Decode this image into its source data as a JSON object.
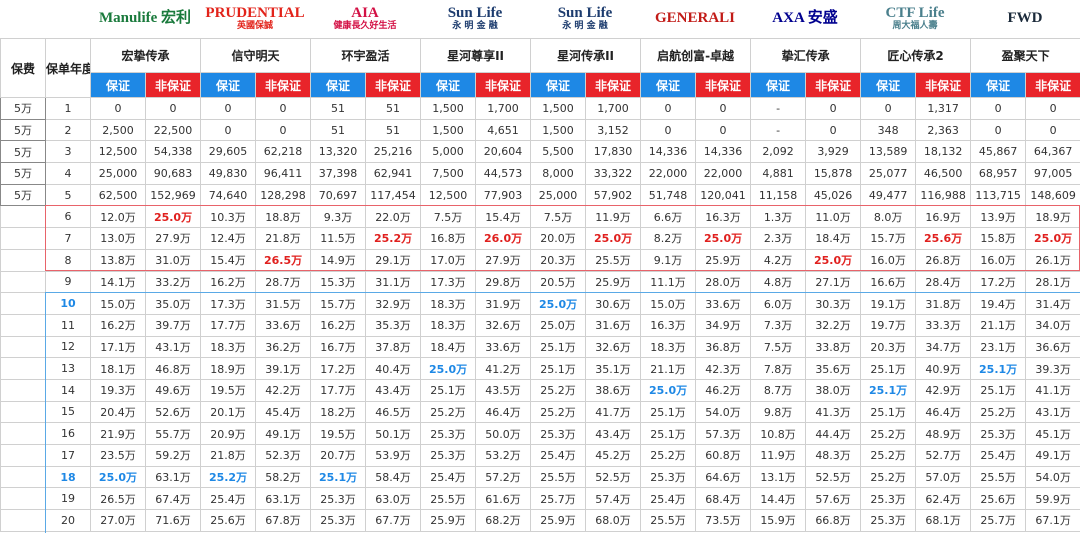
{
  "logos": [
    {
      "lines": [
        "Manulife 宏利"
      ],
      "color": "#1a7a3c"
    },
    {
      "lines": [
        "PRUDENTIAL",
        "英國保誠"
      ],
      "color": "#e2231a"
    },
    {
      "lines": [
        "AIA",
        "健康長久好生活"
      ],
      "color": "#d31145"
    },
    {
      "lines": [
        "Sun Life",
        "永 明 金 融"
      ],
      "color": "#1d3c6e"
    },
    {
      "lines": [
        "Sun Life",
        "永 明 金 融"
      ],
      "color": "#1d3c6e"
    },
    {
      "lines": [
        "GENERALI"
      ],
      "color": "#c21b17"
    },
    {
      "lines": [
        "AXA 安盛"
      ],
      "color": "#00008f"
    },
    {
      "lines": [
        "CTF Life",
        "周大福人壽"
      ],
      "color": "#4a7f8c"
    },
    {
      "lines": [
        "FWD"
      ],
      "color": "#1b2a3a"
    }
  ],
  "table": {
    "headers": [
      "保费",
      "保单年度"
    ],
    "products": [
      "宏挚传承",
      "信守明天",
      "环宇盈活",
      "星河尊享II",
      "星河传承II",
      "启航创富-卓越",
      "挚汇传承",
      "匠心传承2",
      "盈聚天下"
    ],
    "sub_headers": [
      "保证",
      "非保证"
    ],
    "rows": [
      {
        "premium": "5万",
        "year": "1",
        "values": [
          "0",
          "0",
          "0",
          "0",
          "51",
          "51",
          "1,500",
          "1,700",
          "1,500",
          "1,700",
          "0",
          "0",
          "-",
          "0",
          "0",
          "1,317",
          "0",
          "0"
        ]
      },
      {
        "premium": "5万",
        "year": "2",
        "values": [
          "2,500",
          "22,500",
          "0",
          "0",
          "51",
          "51",
          "1,500",
          "4,651",
          "1,500",
          "3,152",
          "0",
          "0",
          "-",
          "0",
          "348",
          "2,363",
          "0",
          "0"
        ]
      },
      {
        "premium": "5万",
        "year": "3",
        "values": [
          "12,500",
          "54,338",
          "29,605",
          "62,218",
          "13,320",
          "25,216",
          "5,000",
          "20,604",
          "5,500",
          "17,830",
          "14,336",
          "14,336",
          "2,092",
          "3,929",
          "13,589",
          "18,132",
          "45,867",
          "64,367"
        ]
      },
      {
        "premium": "5万",
        "year": "4",
        "values": [
          "25,000",
          "90,683",
          "49,830",
          "96,411",
          "37,398",
          "62,941",
          "7,500",
          "44,573",
          "8,000",
          "33,322",
          "22,000",
          "22,000",
          "4,881",
          "15,878",
          "25,077",
          "46,500",
          "68,957",
          "97,005"
        ]
      },
      {
        "premium": "5万",
        "year": "5",
        "values": [
          "62,500",
          "152,969",
          "74,640",
          "128,298",
          "70,697",
          "117,454",
          "12,500",
          "77,903",
          "25,000",
          "57,902",
          "51,748",
          "120,041",
          "11,158",
          "45,026",
          "49,477",
          "116,988",
          "113,715",
          "148,609"
        ]
      },
      {
        "year": "6",
        "values": [
          "12.0万",
          "25.0万",
          "10.3万",
          "18.8万",
          "9.3万",
          "22.0万",
          "7.5万",
          "15.4万",
          "7.5万",
          "11.9万",
          "6.6万",
          "16.3万",
          "1.3万",
          "11.0万",
          "8.0万",
          "16.9万",
          "13.9万",
          "18.9万"
        ],
        "red": [
          1
        ]
      },
      {
        "year": "7",
        "values": [
          "13.0万",
          "27.9万",
          "12.4万",
          "21.8万",
          "11.5万",
          "25.2万",
          "16.8万",
          "26.0万",
          "20.0万",
          "25.0万",
          "8.2万",
          "25.0万",
          "2.3万",
          "18.4万",
          "15.7万",
          "25.6万",
          "15.8万",
          "25.0万"
        ],
        "red": [
          5,
          7,
          9,
          11,
          15,
          17
        ]
      },
      {
        "year": "8",
        "values": [
          "13.8万",
          "31.0万",
          "15.4万",
          "26.5万",
          "14.9万",
          "29.1万",
          "17.0万",
          "27.9万",
          "20.3万",
          "25.5万",
          "9.1万",
          "25.9万",
          "4.2万",
          "25.0万",
          "16.0万",
          "26.8万",
          "16.0万",
          "26.1万"
        ],
        "red": [
          3,
          13
        ]
      },
      {
        "year": "9",
        "values": [
          "14.1万",
          "33.2万",
          "16.2万",
          "28.7万",
          "15.3万",
          "31.1万",
          "17.3万",
          "29.8万",
          "20.5万",
          "25.9万",
          "11.1万",
          "28.0万",
          "4.8万",
          "27.1万",
          "16.6万",
          "28.4万",
          "17.2万",
          "28.1万"
        ]
      },
      {
        "year": "10",
        "year_blue": true,
        "values": [
          "15.0万",
          "35.0万",
          "17.3万",
          "31.5万",
          "15.7万",
          "32.9万",
          "18.3万",
          "31.9万",
          "25.0万",
          "30.6万",
          "15.0万",
          "33.6万",
          "6.0万",
          "30.3万",
          "19.1万",
          "31.8万",
          "19.4万",
          "31.4万"
        ],
        "blue": [
          8
        ]
      },
      {
        "year": "11",
        "values": [
          "16.2万",
          "39.7万",
          "17.7万",
          "33.6万",
          "16.2万",
          "35.3万",
          "18.3万",
          "32.6万",
          "25.0万",
          "31.6万",
          "16.3万",
          "34.9万",
          "7.3万",
          "32.2万",
          "19.7万",
          "33.3万",
          "21.1万",
          "34.0万"
        ]
      },
      {
        "year": "12",
        "values": [
          "17.1万",
          "43.1万",
          "18.3万",
          "36.2万",
          "16.7万",
          "37.8万",
          "18.4万",
          "33.6万",
          "25.1万",
          "32.6万",
          "18.3万",
          "36.8万",
          "7.5万",
          "33.8万",
          "20.3万",
          "34.7万",
          "23.1万",
          "36.6万"
        ]
      },
      {
        "year": "13",
        "values": [
          "18.1万",
          "46.8万",
          "18.9万",
          "39.1万",
          "17.2万",
          "40.4万",
          "25.0万",
          "41.2万",
          "25.1万",
          "35.1万",
          "21.1万",
          "42.3万",
          "7.8万",
          "35.6万",
          "25.1万",
          "40.9万",
          "25.1万",
          "39.3万"
        ],
        "blue": [
          6,
          16
        ]
      },
      {
        "year": "14",
        "values": [
          "19.3万",
          "49.6万",
          "19.5万",
          "42.2万",
          "17.7万",
          "43.4万",
          "25.1万",
          "43.5万",
          "25.2万",
          "38.6万",
          "25.0万",
          "46.2万",
          "8.7万",
          "38.0万",
          "25.1万",
          "42.9万",
          "25.1万",
          "41.1万"
        ],
        "blue": [
          10,
          14
        ]
      },
      {
        "year": "15",
        "values": [
          "20.4万",
          "52.6万",
          "20.1万",
          "45.4万",
          "18.2万",
          "46.5万",
          "25.2万",
          "46.4万",
          "25.2万",
          "41.7万",
          "25.1万",
          "54.0万",
          "9.8万",
          "41.3万",
          "25.1万",
          "46.4万",
          "25.2万",
          "43.1万"
        ]
      },
      {
        "year": "16",
        "values": [
          "21.9万",
          "55.7万",
          "20.9万",
          "49.1万",
          "19.5万",
          "50.1万",
          "25.3万",
          "50.0万",
          "25.3万",
          "43.4万",
          "25.1万",
          "57.3万",
          "10.8万",
          "44.4万",
          "25.2万",
          "48.9万",
          "25.3万",
          "45.1万"
        ]
      },
      {
        "year": "17",
        "values": [
          "23.5万",
          "59.2万",
          "21.8万",
          "52.3万",
          "20.7万",
          "53.9万",
          "25.3万",
          "53.2万",
          "25.4万",
          "45.2万",
          "25.2万",
          "60.8万",
          "11.9万",
          "48.3万",
          "25.2万",
          "52.7万",
          "25.4万",
          "49.1万"
        ]
      },
      {
        "year": "18",
        "year_blue": true,
        "values": [
          "25.0万",
          "63.1万",
          "25.2万",
          "58.2万",
          "25.1万",
          "58.4万",
          "25.4万",
          "57.2万",
          "25.5万",
          "52.5万",
          "25.3万",
          "64.6万",
          "13.1万",
          "52.5万",
          "25.2万",
          "57.0万",
          "25.5万",
          "54.0万"
        ],
        "blue": [
          0,
          2,
          4
        ]
      },
      {
        "year": "19",
        "values": [
          "26.5万",
          "67.4万",
          "25.4万",
          "63.1万",
          "25.3万",
          "63.0万",
          "25.5万",
          "61.6万",
          "25.7万",
          "57.4万",
          "25.4万",
          "68.4万",
          "14.4万",
          "57.6万",
          "25.3万",
          "62.4万",
          "25.6万",
          "59.9万"
        ]
      },
      {
        "year": "20",
        "values": [
          "27.0万",
          "71.6万",
          "25.6万",
          "67.8万",
          "25.3万",
          "67.7万",
          "25.9万",
          "68.2万",
          "25.9万",
          "68.0万",
          "25.5万",
          "73.5万",
          "15.9万",
          "66.8万",
          "25.3万",
          "68.1万",
          "25.7万",
          "67.1万"
        ]
      }
    ]
  }
}
